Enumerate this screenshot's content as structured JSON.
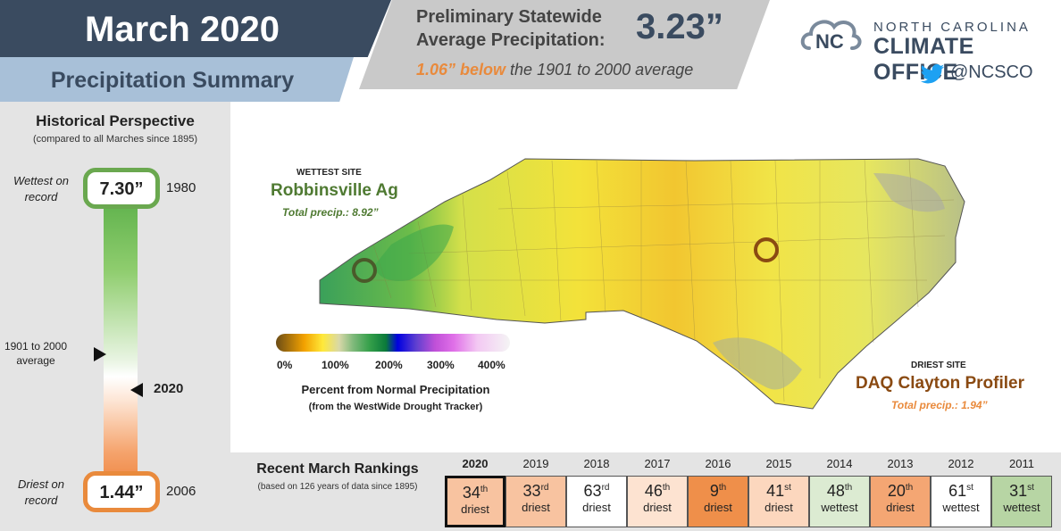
{
  "header": {
    "title": "March 2020",
    "subtitle": "Precipitation Summary",
    "precip_label_line1": "Preliminary Statewide",
    "precip_label_line2": "Average Precipitation:",
    "precip_value": "3.23”",
    "below_value": "1.06” below",
    "below_text": " the 1901 to 2000 average"
  },
  "brand": {
    "line1": "NORTH CAROLINA",
    "line2": "CLIMATE OFFICE",
    "handle": "@NCSCO",
    "logo_icon": "nc-cloud-logo-icon",
    "social_icon": "twitter-bird-icon",
    "accent": "#3a4b60"
  },
  "historical": {
    "title": "Historical Perspective",
    "subtitle": "(compared to all Marches since 1895)",
    "wettest_label": "Wettest on record",
    "wettest_value": "7.30”",
    "wettest_year": "1980",
    "average_label": "1901 to 2000 average",
    "current_year": "2020",
    "driest_label": "Driest on record",
    "driest_value": "1.44”",
    "driest_year": "2006",
    "wet_color": "#6aa84f",
    "dry_color": "#e98a3c"
  },
  "map": {
    "wettest_tag": "WETTEST SITE",
    "wettest_name": "Robbinsville Ag",
    "wettest_total": "Total precip.: 8.92”",
    "driest_tag": "DRIEST SITE",
    "driest_name": "DAQ Clayton Profiler",
    "driest_total": "Total precip.: 1.94”",
    "legend_ticks": [
      "0%",
      "100%",
      "200%",
      "300%",
      "400%"
    ],
    "legend_title": "Percent from Normal Precipitation",
    "legend_subtitle": "(from the WestWide Drought Tracker)"
  },
  "rankings": {
    "title": "Recent March Rankings",
    "subtitle": "(based on 126 years of data since 1895)",
    "items": [
      {
        "year": "2020",
        "rank": "34",
        "suffix": "th",
        "kind": "driest",
        "color": "#f8c3a0",
        "current": true
      },
      {
        "year": "2019",
        "rank": "33",
        "suffix": "rd",
        "kind": "driest",
        "color": "#f8c3a0"
      },
      {
        "year": "2018",
        "rank": "63",
        "suffix": "rd",
        "kind": "driest",
        "color": "#ffffff"
      },
      {
        "year": "2017",
        "rank": "46",
        "suffix": "th",
        "kind": "driest",
        "color": "#fde3d1"
      },
      {
        "year": "2016",
        "rank": "9",
        "suffix": "th",
        "kind": "driest",
        "color": "#ef8f4a"
      },
      {
        "year": "2015",
        "rank": "41",
        "suffix": "st",
        "kind": "driest",
        "color": "#fcd7be"
      },
      {
        "year": "2014",
        "rank": "48",
        "suffix": "th",
        "kind": "wettest",
        "color": "#dcebd2"
      },
      {
        "year": "2013",
        "rank": "20",
        "suffix": "th",
        "kind": "driest",
        "color": "#f4a673"
      },
      {
        "year": "2012",
        "rank": "61",
        "suffix": "st",
        "kind": "wettest",
        "color": "#ffffff"
      },
      {
        "year": "2011",
        "rank": "31",
        "suffix": "st",
        "kind": "wettest",
        "color": "#b7d5a4"
      }
    ]
  }
}
